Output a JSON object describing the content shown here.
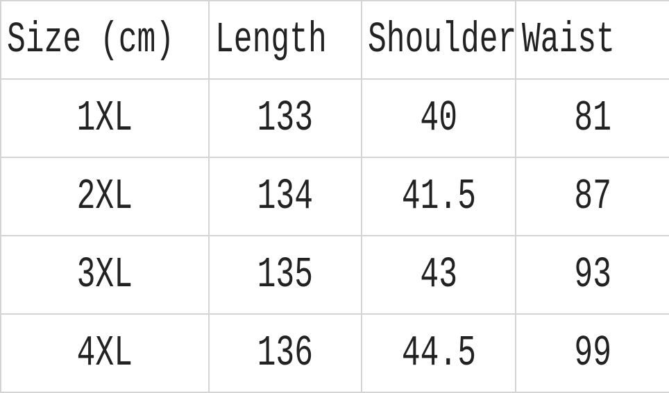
{
  "table": {
    "header": [
      "Size (cm)",
      "Length",
      "Shoulder",
      "Waist"
    ],
    "rows": [
      [
        "1XL",
        133,
        40,
        81
      ],
      [
        "2XL",
        134,
        41.5,
        87
      ],
      [
        "3XL",
        135,
        43,
        93
      ],
      [
        "4XL",
        136,
        44.5,
        99
      ]
    ]
  }
}
